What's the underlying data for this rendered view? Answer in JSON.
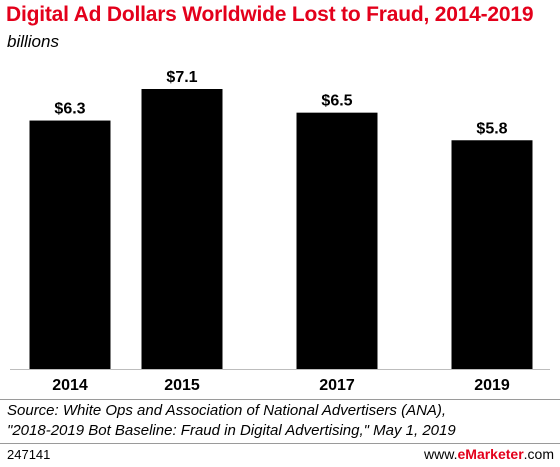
{
  "chart_data": {
    "type": "bar",
    "title": "Digital Ad Dollars Worldwide Lost to Fraud, 2014-2019",
    "subtitle": "billions",
    "categories": [
      "2014",
      "2015",
      "2017",
      "2019"
    ],
    "values": [
      6.3,
      7.1,
      6.5,
      5.8
    ],
    "value_labels": [
      "$6.3",
      "$7.1",
      "$6.5",
      "$5.8"
    ],
    "unit": "billions",
    "ylim": [
      0,
      7.1
    ],
    "grid": false,
    "legend": "none",
    "bar_color": "#000000",
    "axis_color": "#bdbdbd"
  },
  "source": {
    "line1": "Source: White Ops and Association of National Advertisers (ANA),",
    "line2": "\"2018-2019 Bot Baseline: Fraud in Digital Advertising,\" May 1, 2019"
  },
  "footer": {
    "chart_id": "247141",
    "brand_prefix": "www.",
    "brand_name": "eMarketer",
    "brand_suffix": ".com"
  },
  "colors": {
    "title": "#e3001b",
    "divider": "#9a9a9a"
  }
}
